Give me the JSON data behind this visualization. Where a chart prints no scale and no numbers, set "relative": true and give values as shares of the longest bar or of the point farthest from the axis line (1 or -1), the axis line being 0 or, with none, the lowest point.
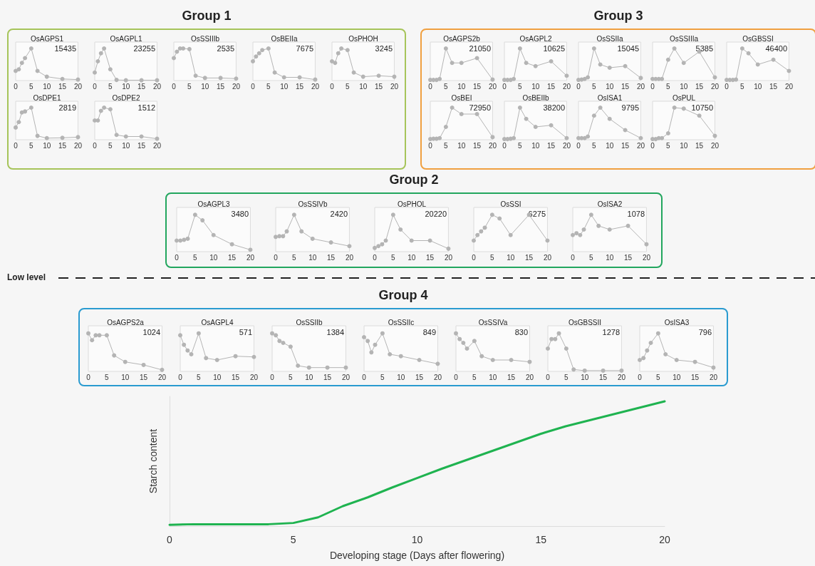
{
  "chart_data": [
    {
      "type": "other",
      "title": "Group 1",
      "color": "#a6c45a"
    },
    {
      "type": "line",
      "title": "OsAGPS1",
      "x": [
        0,
        1,
        2,
        3,
        5,
        7,
        10,
        15,
        20
      ],
      "values": [
        0.3,
        0.35,
        0.55,
        0.7,
        1,
        0.3,
        0.12,
        0.05,
        0.03
      ],
      "relative": true,
      "xlim": [
        0,
        20
      ],
      "xticks": [
        0,
        5,
        10,
        15,
        20
      ],
      "annotations": [
        "15435"
      ],
      "color": "#b4b4b4",
      "marker": "circle"
    },
    {
      "type": "line",
      "title": "OsAGPL1",
      "x": [
        0,
        1,
        2,
        3,
        5,
        7,
        10,
        15,
        20
      ],
      "values": [
        0.25,
        0.6,
        0.85,
        1,
        0.35,
        0.02,
        0.01,
        0.01,
        0.01
      ],
      "relative": true,
      "xlim": [
        0,
        20
      ],
      "xticks": [
        0,
        5,
        10,
        15,
        20
      ],
      "annotations": [
        "23255"
      ],
      "color": "#b4b4b4",
      "marker": "circle"
    },
    {
      "type": "line",
      "title": "OsSSIIIb",
      "x": [
        0,
        1,
        2,
        3,
        5,
        7,
        10,
        15,
        20
      ],
      "values": [
        0.7,
        0.9,
        1,
        1,
        0.98,
        0.15,
        0.08,
        0.08,
        0.06
      ],
      "relative": true,
      "xlim": [
        0,
        20
      ],
      "xticks": [
        0,
        5,
        10,
        15,
        20
      ],
      "annotations": [
        "2535"
      ],
      "color": "#b4b4b4",
      "marker": "circle"
    },
    {
      "type": "line",
      "title": "OsBEIIa",
      "x": [
        0,
        1,
        2,
        3,
        5,
        7,
        10,
        15,
        20
      ],
      "values": [
        0.6,
        0.75,
        0.85,
        0.95,
        1,
        0.25,
        0.1,
        0.1,
        0.03
      ],
      "relative": true,
      "xlim": [
        0,
        20
      ],
      "xticks": [
        0,
        5,
        10,
        15,
        20
      ],
      "annotations": [
        "7675"
      ],
      "color": "#b4b4b4",
      "marker": "circle"
    },
    {
      "type": "line",
      "title": "OsPHOH",
      "x": [
        0,
        1,
        2,
        3,
        5,
        7,
        10,
        15,
        20
      ],
      "values": [
        0.6,
        0.55,
        0.85,
        1,
        0.95,
        0.25,
        0.12,
        0.15,
        0.12
      ],
      "relative": true,
      "xlim": [
        0,
        20
      ],
      "xticks": [
        0,
        5,
        10,
        15,
        20
      ],
      "annotations": [
        "3245"
      ],
      "color": "#b4b4b4",
      "marker": "circle"
    },
    {
      "type": "line",
      "title": "OsDPE1",
      "x": [
        0,
        1,
        2,
        3,
        5,
        7,
        10,
        15,
        20
      ],
      "values": [
        0.38,
        0.55,
        0.85,
        0.88,
        1,
        0.12,
        0.05,
        0.06,
        0.08
      ],
      "relative": true,
      "xlim": [
        0,
        20
      ],
      "xticks": [
        0,
        5,
        10,
        15,
        20
      ],
      "annotations": [
        "2819"
      ],
      "color": "#b4b4b4",
      "marker": "circle"
    },
    {
      "type": "line",
      "title": "OsDPE2",
      "x": [
        0,
        1,
        2,
        3,
        5,
        7,
        10,
        15,
        20
      ],
      "values": [
        0.6,
        0.6,
        0.9,
        1,
        0.95,
        0.15,
        0.1,
        0.1,
        0.03
      ],
      "relative": true,
      "xlim": [
        0,
        20
      ],
      "xticks": [
        0,
        5,
        10,
        15,
        20
      ],
      "annotations": [
        "1512"
      ],
      "color": "#b4b4b4",
      "marker": "circle"
    },
    {
      "type": "other",
      "title": "Group 3",
      "color": "#f0a040"
    },
    {
      "type": "line",
      "title": "OsAGPS2b",
      "x": [
        0,
        1,
        2,
        3,
        5,
        7,
        10,
        15,
        20
      ],
      "values": [
        0.02,
        0.02,
        0.02,
        0.05,
        1,
        0.55,
        0.55,
        0.7,
        0.03
      ],
      "relative": true,
      "xlim": [
        0,
        20
      ],
      "xticks": [
        0,
        5,
        10,
        15,
        20
      ],
      "annotations": [
        "21050"
      ],
      "color": "#b4b4b4",
      "marker": "circle"
    },
    {
      "type": "line",
      "title": "OsAGPL2",
      "x": [
        0,
        1,
        2,
        3,
        5,
        7,
        10,
        15,
        20
      ],
      "values": [
        0.02,
        0.02,
        0.02,
        0.05,
        1,
        0.55,
        0.45,
        0.6,
        0.15
      ],
      "relative": true,
      "xlim": [
        0,
        20
      ],
      "xticks": [
        0,
        5,
        10,
        15,
        20
      ],
      "annotations": [
        "10625"
      ],
      "color": "#b4b4b4",
      "marker": "circle"
    },
    {
      "type": "line",
      "title": "OsSSIIa",
      "x": [
        0,
        1,
        2,
        3,
        5,
        7,
        10,
        15,
        20
      ],
      "values": [
        0.02,
        0.03,
        0.05,
        0.1,
        1,
        0.5,
        0.4,
        0.45,
        0.08
      ],
      "relative": true,
      "xlim": [
        0,
        20
      ],
      "xticks": [
        0,
        5,
        10,
        15,
        20
      ],
      "annotations": [
        "15045"
      ],
      "color": "#b4b4b4",
      "marker": "circle"
    },
    {
      "type": "line",
      "title": "OsSSIIIa",
      "x": [
        0,
        1,
        2,
        3,
        5,
        7,
        10,
        15,
        20
      ],
      "values": [
        0.05,
        0.05,
        0.05,
        0.05,
        0.65,
        1,
        0.55,
        0.9,
        0.1
      ],
      "relative": true,
      "xlim": [
        0,
        20
      ],
      "xticks": [
        0,
        5,
        10,
        15,
        20
      ],
      "annotations": [
        "5385"
      ],
      "color": "#b4b4b4",
      "marker": "circle"
    },
    {
      "type": "line",
      "title": "OsGBSSI",
      "x": [
        0,
        1,
        2,
        3,
        5,
        7,
        10,
        15,
        20
      ],
      "values": [
        0.02,
        0.02,
        0.02,
        0.03,
        1,
        0.85,
        0.5,
        0.65,
        0.3
      ],
      "relative": true,
      "xlim": [
        0,
        20
      ],
      "xticks": [
        0,
        5,
        10,
        15,
        20
      ],
      "annotations": [
        "46400"
      ],
      "color": "#b4b4b4",
      "marker": "circle"
    },
    {
      "type": "line",
      "title": "OsBEI",
      "x": [
        0,
        1,
        2,
        3,
        5,
        7,
        10,
        15,
        20
      ],
      "values": [
        0.02,
        0.03,
        0.03,
        0.05,
        0.4,
        1,
        0.8,
        0.8,
        0.08
      ],
      "relative": true,
      "xlim": [
        0,
        20
      ],
      "xticks": [
        0,
        5,
        10,
        15,
        20
      ],
      "annotations": [
        "72950"
      ],
      "color": "#b4b4b4",
      "marker": "circle"
    },
    {
      "type": "line",
      "title": "OsBEIIb",
      "x": [
        0,
        1,
        2,
        3,
        5,
        7,
        10,
        15,
        20
      ],
      "values": [
        0.02,
        0.02,
        0.03,
        0.05,
        1,
        0.65,
        0.4,
        0.45,
        0.05
      ],
      "relative": true,
      "xlim": [
        0,
        20
      ],
      "xticks": [
        0,
        5,
        10,
        15,
        20
      ],
      "annotations": [
        "38200"
      ],
      "color": "#b4b4b4",
      "marker": "circle"
    },
    {
      "type": "line",
      "title": "OsISA1",
      "x": [
        0,
        1,
        2,
        3,
        5,
        7,
        10,
        15,
        20
      ],
      "values": [
        0.05,
        0.05,
        0.05,
        0.1,
        0.75,
        1,
        0.65,
        0.3,
        0.05
      ],
      "relative": true,
      "xlim": [
        0,
        20
      ],
      "xticks": [
        0,
        5,
        10,
        15,
        20
      ],
      "annotations": [
        "9795"
      ],
      "color": "#b4b4b4",
      "marker": "circle"
    },
    {
      "type": "line",
      "title": "OsPUL",
      "x": [
        0,
        1,
        2,
        3,
        5,
        7,
        10,
        15,
        20
      ],
      "values": [
        0.02,
        0.02,
        0.05,
        0.05,
        0.2,
        1,
        0.97,
        0.75,
        0.12
      ],
      "relative": true,
      "xlim": [
        0,
        20
      ],
      "xticks": [
        0,
        5,
        10,
        15,
        20
      ],
      "annotations": [
        "10750"
      ],
      "color": "#b4b4b4",
      "marker": "circle"
    },
    {
      "type": "other",
      "title": "Group 2",
      "color": "#22a65e"
    },
    {
      "type": "line",
      "title": "OsAGPL3",
      "x": [
        0,
        1,
        2,
        3,
        5,
        7,
        10,
        15,
        20
      ],
      "values": [
        0.3,
        0.3,
        0.32,
        0.35,
        1,
        0.85,
        0.45,
        0.2,
        0.05
      ],
      "relative": true,
      "xlim": [
        0,
        20
      ],
      "xticks": [
        0,
        5,
        10,
        15,
        20
      ],
      "annotations": [
        "3480"
      ],
      "color": "#b4b4b4",
      "marker": "circle"
    },
    {
      "type": "line",
      "title": "OsSSIVb",
      "x": [
        0,
        1,
        2,
        3,
        5,
        7,
        10,
        15,
        20
      ],
      "values": [
        0.4,
        0.42,
        0.42,
        0.55,
        1,
        0.55,
        0.35,
        0.25,
        0.15
      ],
      "relative": true,
      "xlim": [
        0,
        20
      ],
      "xticks": [
        0,
        5,
        10,
        15,
        20
      ],
      "annotations": [
        "2420"
      ],
      "color": "#b4b4b4",
      "marker": "circle"
    },
    {
      "type": "line",
      "title": "OsPHOL",
      "x": [
        0,
        1,
        2,
        3,
        5,
        7,
        10,
        15,
        20
      ],
      "values": [
        0.1,
        0.15,
        0.2,
        0.3,
        1,
        0.6,
        0.3,
        0.3,
        0.08
      ],
      "relative": true,
      "xlim": [
        0,
        20
      ],
      "xticks": [
        0,
        5,
        10,
        15,
        20
      ],
      "annotations": [
        "20220"
      ],
      "color": "#b4b4b4",
      "marker": "circle"
    },
    {
      "type": "line",
      "title": "OsSSI",
      "x": [
        0,
        1,
        2,
        3,
        5,
        7,
        10,
        15,
        20
      ],
      "values": [
        0.3,
        0.45,
        0.55,
        0.65,
        1,
        0.9,
        0.45,
        1,
        0.3
      ],
      "relative": true,
      "xlim": [
        0,
        20
      ],
      "xticks": [
        0,
        5,
        10,
        15,
        20
      ],
      "annotations": [
        "6275"
      ],
      "color": "#b4b4b4",
      "marker": "circle"
    },
    {
      "type": "line",
      "title": "OsISA2",
      "x": [
        0,
        1,
        2,
        3,
        5,
        7,
        10,
        15,
        20
      ],
      "values": [
        0.45,
        0.5,
        0.45,
        0.6,
        1,
        0.7,
        0.6,
        0.7,
        0.2
      ],
      "relative": true,
      "xlim": [
        0,
        20
      ],
      "xticks": [
        0,
        5,
        10,
        15,
        20
      ],
      "annotations": [
        "1078"
      ],
      "color": "#b4b4b4",
      "marker": "circle"
    },
    {
      "type": "other",
      "annotations": [
        "Low level"
      ]
    },
    {
      "type": "other",
      "title": "Group 4",
      "color": "#2a9bd0"
    },
    {
      "type": "line",
      "title": "OsAGPS2a",
      "x": [
        0,
        1,
        2,
        3,
        5,
        7,
        10,
        15,
        20
      ],
      "values": [
        1,
        0.82,
        0.95,
        0.95,
        0.95,
        0.42,
        0.25,
        0.17,
        0.04
      ],
      "relative": true,
      "xlim": [
        0,
        20
      ],
      "xticks": [
        0,
        5,
        10,
        15,
        20
      ],
      "annotations": [
        "1024"
      ],
      "color": "#b4b4b4",
      "marker": "circle"
    },
    {
      "type": "line",
      "title": "OsAGPL4",
      "x": [
        0,
        1,
        2,
        3,
        5,
        7,
        10,
        15,
        20
      ],
      "values": [
        0.95,
        0.7,
        0.55,
        0.45,
        1,
        0.35,
        0.3,
        0.4,
        0.38
      ],
      "relative": true,
      "xlim": [
        0,
        20
      ],
      "xticks": [
        0,
        5,
        10,
        15,
        20
      ],
      "annotations": [
        "571"
      ],
      "color": "#b4b4b4",
      "marker": "circle"
    },
    {
      "type": "line",
      "title": "OsSSIIb",
      "x": [
        0,
        1,
        2,
        3,
        5,
        7,
        10,
        15,
        20
      ],
      "values": [
        1,
        0.95,
        0.8,
        0.75,
        0.65,
        0.15,
        0.1,
        0.1,
        0.1
      ],
      "relative": true,
      "xlim": [
        0,
        20
      ],
      "xticks": [
        0,
        5,
        10,
        15,
        20
      ],
      "annotations": [
        "1384"
      ],
      "color": "#b4b4b4",
      "marker": "circle"
    },
    {
      "type": "line",
      "title": "OsSSIIc",
      "x": [
        0,
        1,
        2,
        3,
        5,
        7,
        10,
        15,
        20
      ],
      "values": [
        0.9,
        0.8,
        0.5,
        0.7,
        1,
        0.45,
        0.4,
        0.3,
        0.2
      ],
      "relative": true,
      "xlim": [
        0,
        20
      ],
      "xticks": [
        0,
        5,
        10,
        15,
        20
      ],
      "annotations": [
        "849"
      ],
      "color": "#b4b4b4",
      "marker": "circle"
    },
    {
      "type": "line",
      "title": "OsSSIVa",
      "x": [
        0,
        1,
        2,
        3,
        5,
        7,
        10,
        15,
        20
      ],
      "values": [
        1,
        0.85,
        0.75,
        0.6,
        0.8,
        0.4,
        0.3,
        0.3,
        0.25
      ],
      "relative": true,
      "xlim": [
        0,
        20
      ],
      "xticks": [
        0,
        5,
        10,
        15,
        20
      ],
      "annotations": [
        "830"
      ],
      "color": "#b4b4b4",
      "marker": "circle"
    },
    {
      "type": "line",
      "title": "OsGBSSII",
      "x": [
        0,
        1,
        2,
        3,
        5,
        7,
        10,
        15,
        20
      ],
      "values": [
        0.6,
        0.85,
        0.85,
        1,
        0.6,
        0.05,
        0.02,
        0.02,
        0.02
      ],
      "relative": true,
      "xlim": [
        0,
        20
      ],
      "xticks": [
        0,
        5,
        10,
        15,
        20
      ],
      "annotations": [
        "1278"
      ],
      "color": "#b4b4b4",
      "marker": "circle"
    },
    {
      "type": "line",
      "title": "OsISA3",
      "x": [
        0,
        1,
        2,
        3,
        5,
        7,
        10,
        15,
        20
      ],
      "values": [
        0.3,
        0.35,
        0.55,
        0.75,
        1,
        0.45,
        0.3,
        0.25,
        0.1
      ],
      "relative": true,
      "xlim": [
        0,
        20
      ],
      "xticks": [
        0,
        5,
        10,
        15,
        20
      ],
      "annotations": [
        "796"
      ],
      "color": "#b4b4b4",
      "marker": "circle"
    },
    {
      "type": "line",
      "x": [
        0,
        1,
        2,
        3,
        4,
        5,
        6,
        7,
        8,
        9,
        10,
        11,
        12,
        13,
        14,
        15,
        16,
        17,
        18,
        19,
        20
      ],
      "values": [
        0.01,
        0.015,
        0.015,
        0.015,
        0.015,
        0.025,
        0.07,
        0.16,
        0.23,
        0.31,
        0.385,
        0.46,
        0.53,
        0.6,
        0.67,
        0.74,
        0.8,
        0.85,
        0.9,
        0.95,
        1
      ],
      "relative": true,
      "xlim": [
        0,
        20
      ],
      "xticks": [
        0,
        5,
        10,
        15,
        20
      ],
      "xlabel": "Developing stage (Days after flowering)",
      "ylabel": "Starch content",
      "color": "#1fb350",
      "marker": "none"
    }
  ]
}
